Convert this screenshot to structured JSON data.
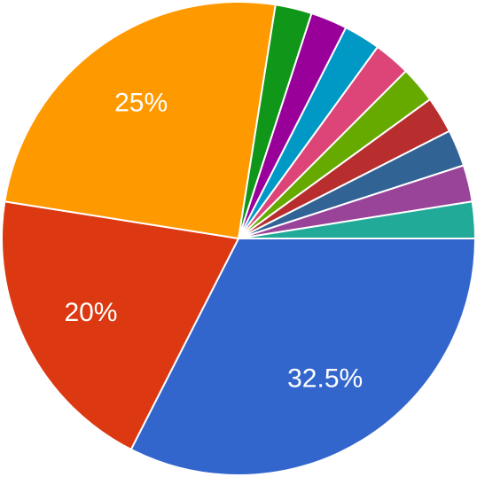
{
  "chart_data": {
    "type": "pie",
    "values": [
      32.5,
      20,
      25,
      2.5,
      2.5,
      2.5,
      2.5,
      2.5,
      2.5,
      2.5,
      2.5,
      2.5
    ],
    "value_labels": [
      "32.5%",
      "20%",
      "25%",
      null,
      null,
      null,
      null,
      null,
      null,
      null,
      null,
      null
    ],
    "colors": [
      "#3366cc",
      "#dc3912",
      "#ff9900",
      "#109618",
      "#990099",
      "#0099c6",
      "#dd4477",
      "#66aa00",
      "#b82e2e",
      "#316395",
      "#994499",
      "#22aa99"
    ]
  }
}
